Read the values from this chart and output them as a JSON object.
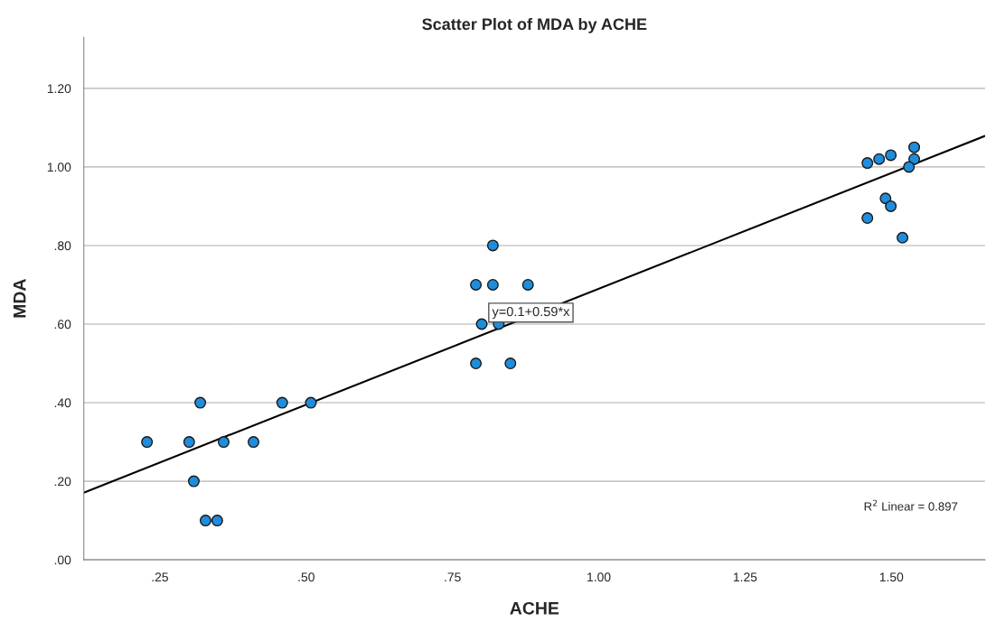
{
  "chart_data": {
    "type": "scatter",
    "title": "Scatter Plot of MDA by ACHE",
    "xlabel": "ACHE",
    "ylabel": "MDA",
    "series": [
      {
        "marker": "circle",
        "color": "#1f8ddb",
        "x": [
          0.228,
          0.3,
          0.319,
          0.308,
          0.328,
          0.348,
          0.359,
          0.41,
          0.459,
          0.508,
          0.819,
          0.79,
          0.819,
          0.879,
          0.8,
          0.829,
          0.79,
          0.849,
          1.459,
          1.479,
          1.499,
          1.539,
          1.539,
          1.53,
          1.49,
          1.499,
          1.459,
          1.519
        ],
        "values": [
          0.3,
          0.3,
          0.4,
          0.2,
          0.1,
          0.1,
          0.3,
          0.3,
          0.4,
          0.4,
          0.8,
          0.7,
          0.7,
          0.7,
          0.6,
          0.6,
          0.5,
          0.5,
          1.01,
          1.02,
          1.03,
          1.05,
          1.02,
          1.0,
          0.92,
          0.9,
          0.87,
          0.82
        ]
      },
      {
        "type": "line",
        "color": "#000000",
        "x": [
          0.12,
          1.66
        ],
        "values": [
          0.171,
          1.079
        ]
      }
    ],
    "annotations": [
      "y=0.1+0.59*x",
      "R$^{2}$ Linear = 0.897"
    ],
    "xlim": [
      0.12,
      1.66
    ],
    "ylim": [
      0,
      1.33
    ],
    "xticks": [
      {
        "value": 0.25,
        "label": ".25"
      },
      {
        "value": 0.5,
        "label": ".50"
      },
      {
        "value": 0.75,
        "label": ".75"
      },
      {
        "value": 1.0,
        "label": "1.00"
      },
      {
        "value": 1.25,
        "label": "1.25"
      },
      {
        "value": 1.5,
        "label": "1.50"
      }
    ],
    "yticks": [
      {
        "value": 0,
        "label": ".00"
      },
      {
        "value": 0.2,
        "label": ".20"
      },
      {
        "value": 0.4,
        "label": ".40"
      },
      {
        "value": 0.6,
        "label": ".60"
      },
      {
        "value": 0.8,
        "label": ".80"
      },
      {
        "value": 1.0,
        "label": "1.00"
      },
      {
        "value": 1.2,
        "label": "1.20"
      }
    ],
    "grid": "y"
  }
}
